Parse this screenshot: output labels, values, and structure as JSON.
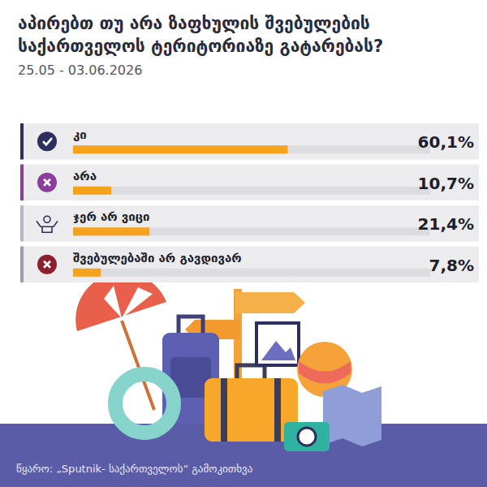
{
  "chart_data": {
    "type": "bar",
    "orientation": "horizontal",
    "title": "აპირებთ თუ არა ზაფხულის შვებულების საქართველოს ტერიტორიაზე გატარებას?",
    "subtitle": "25.05 - 03.06.2026",
    "categories": [
      "კი",
      "არა",
      "ჯერ არ ვიცი",
      "შვებულებაში არ გავდივარ"
    ],
    "values": [
      60.1,
      10.7,
      21.4,
      7.8
    ],
    "value_labels": [
      "60,1%",
      "10,7%",
      "21,4%",
      "7,8%"
    ],
    "data_labels": true,
    "color": "#f5a21c",
    "xlim": [
      0,
      100
    ],
    "tick_labels": false,
    "source": "წყარო: „Sputnik- საქართველოს“ გამოკითხვა"
  }
}
